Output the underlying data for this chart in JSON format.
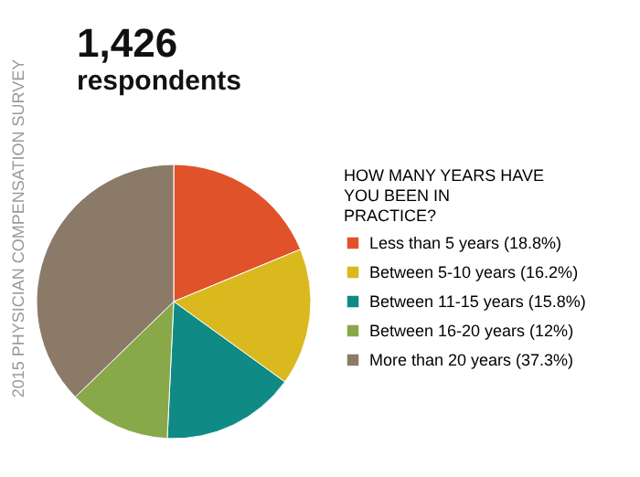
{
  "chart_data": {
    "type": "pie",
    "title": "1,426",
    "subtitle": "respondents",
    "legend_title": "HOW MANY YEARS HAVE YOU BEEN IN PRACTICE?",
    "categories": [
      "Less than 5 years (18.8%)",
      "Between 5-10 years (16.2%)",
      "Between 11-15 years (15.8%)",
      "Between 16-20 years (12%)",
      "More than 20 years (37.3%)"
    ],
    "values": [
      18.8,
      16.2,
      15.8,
      12,
      37.3
    ],
    "colors": [
      "#e0532a",
      "#d9b91e",
      "#0f8a84",
      "#88a84a",
      "#8c7a68"
    ],
    "legend": "right",
    "annotations": [
      "2015 PHYSICIAN COMPENSATION SURVEY"
    ]
  }
}
